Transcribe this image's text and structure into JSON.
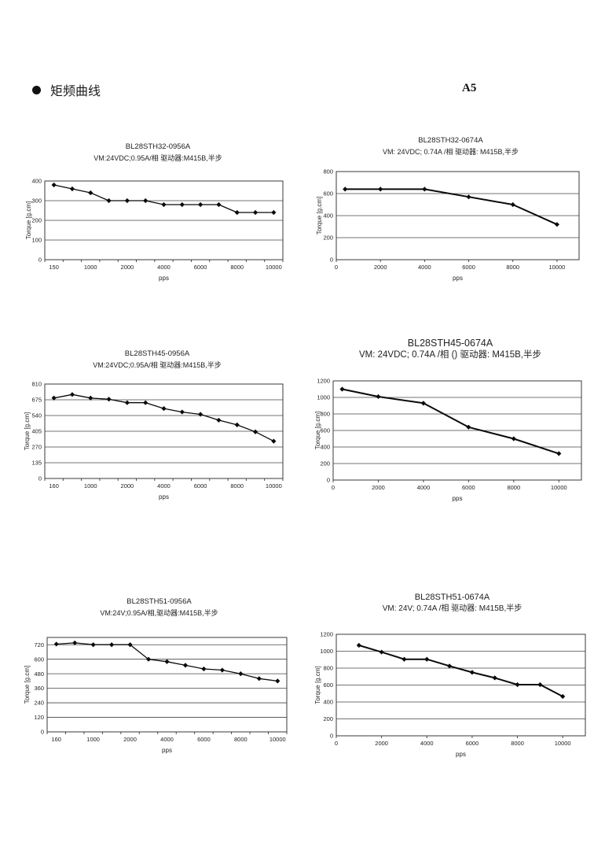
{
  "page": {
    "header": {
      "bullet": "torque-frequency-section-bullet",
      "title": "矩频曲线",
      "page_label": "A5"
    }
  },
  "chart_data": [
    {
      "type": "line",
      "title": "BL28STH32-0956A",
      "subtitle": "VM:24VDC;0.95A/相 驱动器:M415B,半步",
      "xlabel": "pps",
      "ylabel": "Torque [g.cm]",
      "legend": "none",
      "grid": true,
      "marker": "diamond",
      "x_mode": "categorical",
      "categories": [
        150,
        500,
        1000,
        1500,
        2000,
        3000,
        4000,
        5000,
        6000,
        7000,
        8000,
        9000,
        10000
      ],
      "x_tick_labels": [
        "150",
        "",
        "1000",
        "",
        "2000",
        "",
        "4000",
        "",
        "6000",
        "",
        "8000",
        "",
        "10000"
      ],
      "values": [
        380,
        360,
        340,
        300,
        300,
        300,
        280,
        280,
        280,
        280,
        240,
        240,
        240
      ],
      "y_ticks": [
        0,
        100,
        200,
        300,
        400
      ],
      "ylim": [
        0,
        400
      ]
    },
    {
      "type": "line",
      "title": "BL28STH32-0674A",
      "subtitle": "VM: 24VDC;  0.74A /相   驱动器: M415B,半步",
      "xlabel": "pps",
      "ylabel": "Torque [g.cm]",
      "legend": "none",
      "grid": true,
      "marker": "diamond",
      "x_mode": "numeric",
      "x": [
        400,
        2000,
        4000,
        6000,
        8000,
        10000
      ],
      "values": [
        640,
        640,
        640,
        570,
        500,
        320
      ],
      "x_ticks": [
        0,
        2000,
        4000,
        6000,
        8000,
        10000
      ],
      "xlim": [
        0,
        11000
      ],
      "y_ticks": [
        0,
        200,
        400,
        600,
        800
      ],
      "ylim": [
        0,
        800
      ]
    },
    {
      "type": "line",
      "title": "BL28STH45-0956A",
      "subtitle": "VM:24VDC;0.95A/相 驱动器:M415B,半步",
      "xlabel": "pps",
      "ylabel": "Torque [g.cm]",
      "legend": "none",
      "grid": true,
      "marker": "diamond",
      "x_mode": "categorical",
      "categories": [
        160,
        500,
        1000,
        1500,
        2000,
        3000,
        4000,
        5000,
        6000,
        7000,
        8000,
        9000,
        10000
      ],
      "x_tick_labels": [
        "160",
        "",
        "1000",
        "",
        "2000",
        "",
        "4000",
        "",
        "6000",
        "",
        "8000",
        "",
        "10000"
      ],
      "values": [
        690,
        720,
        690,
        680,
        650,
        650,
        600,
        570,
        550,
        500,
        460,
        400,
        320
      ],
      "y_ticks": [
        0,
        135,
        270,
        405,
        540,
        675,
        810
      ],
      "ylim": [
        0,
        810
      ]
    },
    {
      "type": "line",
      "title": "BL28STH45-0674A",
      "subtitle": "VM: 24VDC;  0.74A /相 ()  驱动器: M415B,半步",
      "xlabel": "pps",
      "ylabel": "Torque [g.cm]",
      "legend": "none",
      "grid": true,
      "marker": "diamond",
      "x_mode": "numeric",
      "x": [
        400,
        2000,
        4000,
        6000,
        8000,
        10000
      ],
      "values": [
        1100,
        1010,
        930,
        640,
        500,
        320
      ],
      "x_ticks": [
        0,
        2000,
        4000,
        6000,
        8000,
        10000
      ],
      "xlim": [
        0,
        11000
      ],
      "y_ticks": [
        0,
        200,
        400,
        600,
        800,
        1000,
        1200
      ],
      "ylim": [
        0,
        1200
      ]
    },
    {
      "type": "line",
      "title": "BL28STH51-0956A",
      "subtitle": "VM:24V;0.95A/相,驱动器:M415B,半步",
      "xlabel": "pps",
      "ylabel": "Torque [g.cm]",
      "legend": "none",
      "grid": true,
      "marker": "diamond",
      "x_mode": "categorical",
      "categories": [
        160,
        500,
        1000,
        1500,
        2000,
        3000,
        4000,
        5000,
        6000,
        7000,
        8000,
        9000,
        10000
      ],
      "x_tick_labels": [
        "160",
        "",
        "1000",
        "",
        "2000",
        "",
        "4000",
        "",
        "6000",
        "",
        "8000",
        "",
        "10000"
      ],
      "values": [
        725,
        735,
        720,
        720,
        720,
        600,
        580,
        550,
        520,
        510,
        480,
        440,
        420
      ],
      "y_ticks": [
        0,
        120,
        240,
        360,
        480,
        600,
        720
      ],
      "ylim": [
        0,
        780
      ]
    },
    {
      "type": "line",
      "title": "BL28STH51-0674A",
      "subtitle": "VM: 24V;  0.74A /相  驱动器: M415B,半步",
      "xlabel": "pps",
      "ylabel": "Torque [g.cm]",
      "legend": "none",
      "grid": true,
      "marker": "diamond",
      "x_mode": "numeric",
      "x": [
        1000,
        2000,
        3000,
        4000,
        5000,
        6000,
        7000,
        8000,
        9000,
        10000
      ],
      "values": [
        1070,
        990,
        905,
        905,
        825,
        750,
        685,
        605,
        605,
        465
      ],
      "x_ticks": [
        0,
        2000,
        4000,
        6000,
        8000,
        10000
      ],
      "xlim": [
        0,
        11000
      ],
      "y_ticks": [
        0,
        200,
        400,
        600,
        800,
        1000,
        1200
      ],
      "ylim": [
        0,
        1200
      ]
    }
  ]
}
